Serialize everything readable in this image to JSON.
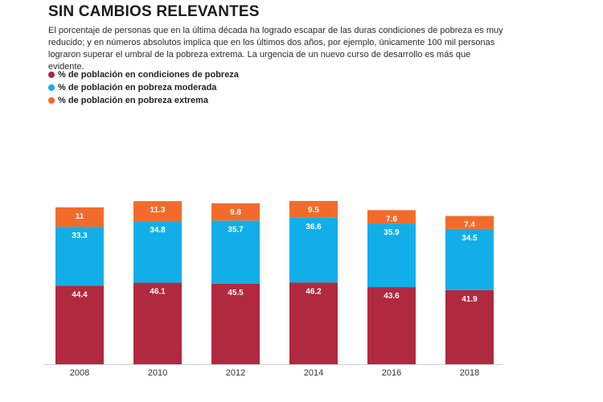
{
  "title": "SIN CAMBIOS RELEVANTES",
  "description": "El porcentaje de personas que en la última década ha logrado escapar de las duras condiciones de pobreza es muy reducido; y en números absolutos implica que en los últimos dos años, por ejemplo, únicamente 100 mil personas lograron superar el umbral de la pobreza extrema. La urgencia de un nuevo curso de desarrollo es más que evidente.",
  "chart_data": {
    "type": "bar",
    "stacked": true,
    "categories": [
      "2008",
      "2010",
      "2012",
      "2014",
      "2016",
      "2018"
    ],
    "series": [
      {
        "name": "% de población en condiciones de pobreza",
        "color": "#b0293f",
        "values": [
          44.4,
          46.1,
          45.5,
          46.2,
          43.6,
          41.9
        ]
      },
      {
        "name": "% de población en pobreza moderada",
        "color": "#12aee8",
        "values": [
          33.3,
          34.8,
          35.7,
          36.6,
          35.9,
          34.5
        ]
      },
      {
        "name": "% de población en pobreza extrema",
        "color": "#f26b2b",
        "values": [
          11,
          11.3,
          9.8,
          9.5,
          7.6,
          7.4
        ]
      }
    ],
    "title": "SIN CAMBIOS RELEVANTES",
    "xlabel": "",
    "ylabel": "",
    "legend": "top-left",
    "grid": false
  }
}
